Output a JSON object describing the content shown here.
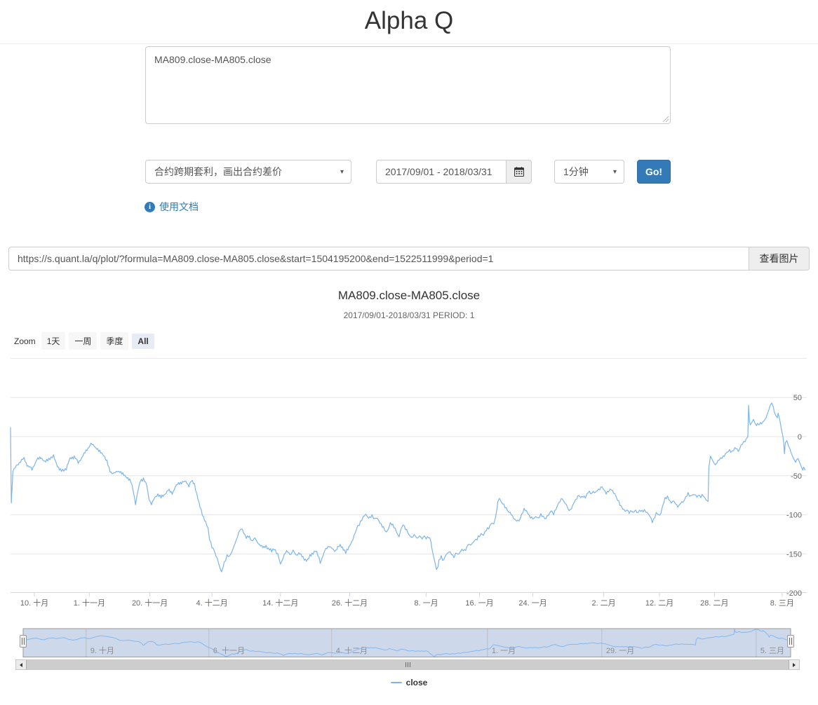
{
  "page": {
    "title": "Alpha Q"
  },
  "formula_input": {
    "value": "MA809.close-MA805.close"
  },
  "controls": {
    "strategy_select": {
      "value": "合约跨期套利，画出合约差价"
    },
    "date_range": {
      "value": "2017/09/01 - 2018/03/31"
    },
    "period_select": {
      "value": "1分钟"
    },
    "go_button": "Go!",
    "doc_link": {
      "icon_letter": "i",
      "label": "使用文档"
    }
  },
  "url_bar": {
    "value": "https://s.quant.la/q/plot/?formula=MA809.close-MA805.close&start=1504195200&end=1522511999&period=1",
    "view_image_button": "查看图片"
  },
  "chart": {
    "title": "MA809.close-MA805.close",
    "subtitle": "2017/09/01-2018/03/31 PERIOD: 1",
    "range_selector": {
      "zoom_label": "Zoom",
      "buttons": [
        "1天",
        "一周",
        "季度",
        "All"
      ],
      "selected": "All"
    },
    "legend": {
      "label": "close"
    },
    "colors": {
      "series": "#7cb5ec",
      "grid": "#e6e6e6",
      "axis_line": "#ccd6eb",
      "axis_label": "#666666",
      "nav_mask": "rgba(102,133,194,0.32)",
      "nav_grid": "#b0b0b0",
      "nav_label": "#8b8b8b"
    }
  },
  "chart_data": {
    "type": "line",
    "series_name": "close",
    "title": "MA809.close-MA805.close",
    "x_range": [
      "2017/09/01",
      "2018/03/31"
    ],
    "period": "1",
    "ylim": [
      -200,
      100
    ],
    "y_ticks": [
      50,
      0,
      -50,
      -100,
      -150,
      -200
    ],
    "y_gridlines": [
      100,
      50,
      0,
      -50,
      -100,
      -150
    ],
    "x_ticks": [
      {
        "f": 0.03,
        "label": "10. 十月"
      },
      {
        "f": 0.099,
        "label": "1. 十一月"
      },
      {
        "f": 0.175,
        "label": "20. 十一月"
      },
      {
        "f": 0.253,
        "label": "4. 十二月"
      },
      {
        "f": 0.339,
        "label": "14. 十二月"
      },
      {
        "f": 0.426,
        "label": "26. 十二月"
      },
      {
        "f": 0.522,
        "label": "8. 一月"
      },
      {
        "f": 0.589,
        "label": "16. 一月"
      },
      {
        "f": 0.656,
        "label": "24. 一月"
      },
      {
        "f": 0.745,
        "label": "2. 二月"
      },
      {
        "f": 0.815,
        "label": "12. 二月"
      },
      {
        "f": 0.884,
        "label": "28. 二月"
      },
      {
        "f": 0.969,
        "label": "8. 三月"
      }
    ],
    "navigator_ticks": [
      {
        "f": 0.082,
        "label": "9. 十月"
      },
      {
        "f": 0.242,
        "label": "6. 十一月"
      },
      {
        "f": 0.402,
        "label": "4. 十二月"
      },
      {
        "f": 0.605,
        "label": "1. 一月"
      },
      {
        "f": 0.754,
        "label": "29. 一月"
      },
      {
        "f": 0.955,
        "label": "5. 三月"
      }
    ],
    "points": [
      [
        0.0,
        12
      ],
      [
        0.001,
        -85
      ],
      [
        0.003,
        -45
      ],
      [
        0.006,
        -40
      ],
      [
        0.011,
        -33
      ],
      [
        0.017,
        -28
      ],
      [
        0.022,
        -38
      ],
      [
        0.027,
        -42
      ],
      [
        0.033,
        -30
      ],
      [
        0.038,
        -26
      ],
      [
        0.043,
        -33
      ],
      [
        0.048,
        -28
      ],
      [
        0.054,
        -25
      ],
      [
        0.059,
        -38
      ],
      [
        0.064,
        -44
      ],
      [
        0.07,
        -40
      ],
      [
        0.075,
        -28
      ],
      [
        0.08,
        -25
      ],
      [
        0.085,
        -34
      ],
      [
        0.091,
        -25
      ],
      [
        0.096,
        -16
      ],
      [
        0.101,
        -10
      ],
      [
        0.107,
        -14
      ],
      [
        0.112,
        -19
      ],
      [
        0.117,
        -24
      ],
      [
        0.121,
        -32
      ],
      [
        0.125,
        -44
      ],
      [
        0.13,
        -48
      ],
      [
        0.136,
        -44
      ],
      [
        0.141,
        -48
      ],
      [
        0.146,
        -52
      ],
      [
        0.151,
        -57
      ],
      [
        0.154,
        -68
      ],
      [
        0.157,
        -86
      ],
      [
        0.159,
        -74
      ],
      [
        0.163,
        -57
      ],
      [
        0.167,
        -53
      ],
      [
        0.171,
        -62
      ],
      [
        0.174,
        -80
      ],
      [
        0.177,
        -85
      ],
      [
        0.181,
        -79
      ],
      [
        0.185,
        -74
      ],
      [
        0.189,
        -78
      ],
      [
        0.194,
        -73
      ],
      [
        0.198,
        -69
      ],
      [
        0.203,
        -72
      ],
      [
        0.207,
        -64
      ],
      [
        0.211,
        -61
      ],
      [
        0.216,
        -57
      ],
      [
        0.22,
        -58
      ],
      [
        0.224,
        -63
      ],
      [
        0.227,
        -57
      ],
      [
        0.231,
        -62
      ],
      [
        0.234,
        -74
      ],
      [
        0.238,
        -90
      ],
      [
        0.241,
        -100
      ],
      [
        0.245,
        -108
      ],
      [
        0.248,
        -118
      ],
      [
        0.25,
        -132
      ],
      [
        0.253,
        -141
      ],
      [
        0.256,
        -146
      ],
      [
        0.258,
        -153
      ],
      [
        0.261,
        -159
      ],
      [
        0.263,
        -168
      ],
      [
        0.265,
        -173
      ],
      [
        0.267,
        -167
      ],
      [
        0.27,
        -158
      ],
      [
        0.272,
        -151
      ],
      [
        0.275,
        -153
      ],
      [
        0.278,
        -148
      ],
      [
        0.281,
        -138
      ],
      [
        0.285,
        -128
      ],
      [
        0.288,
        -120
      ],
      [
        0.291,
        -117
      ],
      [
        0.293,
        -124
      ],
      [
        0.296,
        -130
      ],
      [
        0.3,
        -127
      ],
      [
        0.303,
        -133
      ],
      [
        0.307,
        -130
      ],
      [
        0.31,
        -134
      ],
      [
        0.314,
        -139
      ],
      [
        0.317,
        -142
      ],
      [
        0.321,
        -140
      ],
      [
        0.324,
        -144
      ],
      [
        0.328,
        -147
      ],
      [
        0.331,
        -143
      ],
      [
        0.334,
        -149
      ],
      [
        0.337,
        -155
      ],
      [
        0.339,
        -163
      ],
      [
        0.342,
        -155
      ],
      [
        0.344,
        -150
      ],
      [
        0.348,
        -147
      ],
      [
        0.352,
        -150
      ],
      [
        0.355,
        -146
      ],
      [
        0.359,
        -151
      ],
      [
        0.362,
        -148
      ],
      [
        0.366,
        -153
      ],
      [
        0.369,
        -156
      ],
      [
        0.373,
        -159
      ],
      [
        0.376,
        -153
      ],
      [
        0.38,
        -149
      ],
      [
        0.383,
        -147
      ],
      [
        0.386,
        -152
      ],
      [
        0.389,
        -160
      ],
      [
        0.391,
        -156
      ],
      [
        0.394,
        -148
      ],
      [
        0.396,
        -143
      ],
      [
        0.4,
        -140
      ],
      [
        0.404,
        -143
      ],
      [
        0.407,
        -146
      ],
      [
        0.411,
        -141
      ],
      [
        0.414,
        -139
      ],
      [
        0.418,
        -143
      ],
      [
        0.421,
        -148
      ],
      [
        0.425,
        -143
      ],
      [
        0.427,
        -138
      ],
      [
        0.43,
        -130
      ],
      [
        0.433,
        -123
      ],
      [
        0.435,
        -117
      ],
      [
        0.438,
        -112
      ],
      [
        0.441,
        -107
      ],
      [
        0.443,
        -102
      ],
      [
        0.446,
        -99
      ],
      [
        0.448,
        -102
      ],
      [
        0.451,
        -105
      ],
      [
        0.454,
        -102
      ],
      [
        0.456,
        -105
      ],
      [
        0.459,
        -103
      ],
      [
        0.462,
        -107
      ],
      [
        0.464,
        -111
      ],
      [
        0.467,
        -114
      ],
      [
        0.47,
        -119
      ],
      [
        0.472,
        -122
      ],
      [
        0.475,
        -117
      ],
      [
        0.477,
        -110
      ],
      [
        0.48,
        -114
      ],
      [
        0.483,
        -119
      ],
      [
        0.485,
        -123
      ],
      [
        0.488,
        -127
      ],
      [
        0.491,
        -117
      ],
      [
        0.493,
        -113
      ],
      [
        0.496,
        -117
      ],
      [
        0.499,
        -122
      ],
      [
        0.501,
        -126
      ],
      [
        0.504,
        -129
      ],
      [
        0.507,
        -125
      ],
      [
        0.509,
        -128
      ],
      [
        0.512,
        -131
      ],
      [
        0.514,
        -127
      ],
      [
        0.517,
        -130
      ],
      [
        0.52,
        -128
      ],
      [
        0.522,
        -131
      ],
      [
        0.525,
        -127
      ],
      [
        0.528,
        -133
      ],
      [
        0.529,
        -142
      ],
      [
        0.531,
        -152
      ],
      [
        0.533,
        -161
      ],
      [
        0.535,
        -170
      ],
      [
        0.537,
        -166
      ],
      [
        0.538,
        -158
      ],
      [
        0.541,
        -154
      ],
      [
        0.544,
        -158
      ],
      [
        0.546,
        -153
      ],
      [
        0.549,
        -150
      ],
      [
        0.552,
        -148
      ],
      [
        0.554,
        -151
      ],
      [
        0.557,
        -153
      ],
      [
        0.559,
        -149
      ],
      [
        0.562,
        -151
      ],
      [
        0.565,
        -147
      ],
      [
        0.567,
        -144
      ],
      [
        0.57,
        -146
      ],
      [
        0.573,
        -141
      ],
      [
        0.575,
        -138
      ],
      [
        0.578,
        -140
      ],
      [
        0.581,
        -136
      ],
      [
        0.583,
        -133
      ],
      [
        0.586,
        -130
      ],
      [
        0.589,
        -127
      ],
      [
        0.591,
        -124
      ],
      [
        0.594,
        -126
      ],
      [
        0.596,
        -121
      ],
      [
        0.599,
        -118
      ],
      [
        0.602,
        -114
      ],
      [
        0.604,
        -111
      ],
      [
        0.607,
        -113
      ],
      [
        0.609,
        -104
      ],
      [
        0.611,
        -92
      ],
      [
        0.612,
        -83
      ],
      [
        0.614,
        -79
      ],
      [
        0.616,
        -83
      ],
      [
        0.618,
        -86
      ],
      [
        0.621,
        -89
      ],
      [
        0.624,
        -93
      ],
      [
        0.626,
        -97
      ],
      [
        0.629,
        -100
      ],
      [
        0.632,
        -103
      ],
      [
        0.634,
        -106
      ],
      [
        0.637,
        -109
      ],
      [
        0.64,
        -106
      ],
      [
        0.642,
        -99
      ],
      [
        0.645,
        -93
      ],
      [
        0.648,
        -96
      ],
      [
        0.65,
        -99
      ],
      [
        0.653,
        -103
      ],
      [
        0.656,
        -106
      ],
      [
        0.658,
        -104
      ],
      [
        0.661,
        -101
      ],
      [
        0.663,
        -104
      ],
      [
        0.666,
        -101
      ],
      [
        0.669,
        -103
      ],
      [
        0.671,
        -105
      ],
      [
        0.674,
        -102
      ],
      [
        0.677,
        -99
      ],
      [
        0.679,
        -95
      ],
      [
        0.682,
        -99
      ],
      [
        0.685,
        -94
      ],
      [
        0.687,
        -88
      ],
      [
        0.69,
        -81
      ],
      [
        0.693,
        -78
      ],
      [
        0.695,
        -83
      ],
      [
        0.698,
        -88
      ],
      [
        0.7,
        -92
      ],
      [
        0.703,
        -94
      ],
      [
        0.706,
        -89
      ],
      [
        0.708,
        -84
      ],
      [
        0.711,
        -79
      ],
      [
        0.714,
        -76
      ],
      [
        0.716,
        -78
      ],
      [
        0.719,
        -75
      ],
      [
        0.722,
        -77
      ],
      [
        0.724,
        -73
      ],
      [
        0.727,
        -71
      ],
      [
        0.73,
        -73
      ],
      [
        0.732,
        -70
      ],
      [
        0.735,
        -72
      ],
      [
        0.737,
        -69
      ],
      [
        0.74,
        -67
      ],
      [
        0.743,
        -65
      ],
      [
        0.745,
        -68
      ],
      [
        0.748,
        -71
      ],
      [
        0.751,
        -69
      ],
      [
        0.753,
        -67
      ],
      [
        0.756,
        -70
      ],
      [
        0.759,
        -73
      ],
      [
        0.761,
        -78
      ],
      [
        0.764,
        -84
      ],
      [
        0.767,
        -89
      ],
      [
        0.769,
        -93
      ],
      [
        0.772,
        -96
      ],
      [
        0.774,
        -94
      ],
      [
        0.777,
        -96
      ],
      [
        0.78,
        -94
      ],
      [
        0.782,
        -97
      ],
      [
        0.785,
        -95
      ],
      [
        0.788,
        -97
      ],
      [
        0.79,
        -94
      ],
      [
        0.793,
        -96
      ],
      [
        0.796,
        -94
      ],
      [
        0.798,
        -97
      ],
      [
        0.801,
        -99
      ],
      [
        0.803,
        -102
      ],
      [
        0.806,
        -108
      ],
      [
        0.809,
        -103
      ],
      [
        0.811,
        -97
      ],
      [
        0.814,
        -101
      ],
      [
        0.817,
        -97
      ],
      [
        0.819,
        -88
      ],
      [
        0.822,
        -80
      ],
      [
        0.825,
        -77
      ],
      [
        0.827,
        -81
      ],
      [
        0.83,
        -85
      ],
      [
        0.833,
        -82
      ],
      [
        0.835,
        -86
      ],
      [
        0.838,
        -89
      ],
      [
        0.84,
        -87
      ],
      [
        0.843,
        -84
      ],
      [
        0.846,
        -81
      ],
      [
        0.848,
        -77
      ],
      [
        0.851,
        -74
      ],
      [
        0.854,
        -77
      ],
      [
        0.856,
        -75
      ],
      [
        0.859,
        -74
      ],
      [
        0.862,
        -77
      ],
      [
        0.864,
        -75
      ],
      [
        0.867,
        -77
      ],
      [
        0.87,
        -76
      ],
      [
        0.872,
        -78
      ],
      [
        0.875,
        -81
      ],
      [
        0.876,
        -83
      ],
      [
        0.877,
        -40
      ],
      [
        0.879,
        -25
      ],
      [
        0.881,
        -29
      ],
      [
        0.883,
        -33
      ],
      [
        0.885,
        -36
      ],
      [
        0.887,
        -34
      ],
      [
        0.89,
        -30
      ],
      [
        0.892,
        -27
      ],
      [
        0.895,
        -25
      ],
      [
        0.898,
        -23
      ],
      [
        0.9,
        -20
      ],
      [
        0.903,
        -17
      ],
      [
        0.906,
        -20
      ],
      [
        0.908,
        -18
      ],
      [
        0.911,
        -14
      ],
      [
        0.914,
        -17
      ],
      [
        0.916,
        -15
      ],
      [
        0.919,
        -10
      ],
      [
        0.921,
        -6
      ],
      [
        0.924,
        -3
      ],
      [
        0.926,
        0
      ],
      [
        0.927,
        40
      ],
      [
        0.928,
        20
      ],
      [
        0.929,
        15
      ],
      [
        0.931,
        18
      ],
      [
        0.933,
        22
      ],
      [
        0.935,
        17
      ],
      [
        0.937,
        14
      ],
      [
        0.938,
        17
      ],
      [
        0.94,
        15
      ],
      [
        0.942,
        18
      ],
      [
        0.943,
        16
      ],
      [
        0.945,
        19
      ],
      [
        0.947,
        21
      ],
      [
        0.949,
        24
      ],
      [
        0.95,
        28
      ],
      [
        0.952,
        33
      ],
      [
        0.954,
        40
      ],
      [
        0.956,
        43
      ],
      [
        0.958,
        38
      ],
      [
        0.959,
        32
      ],
      [
        0.961,
        27
      ],
      [
        0.963,
        24
      ],
      [
        0.964,
        30
      ],
      [
        0.966,
        22
      ],
      [
        0.968,
        10
      ],
      [
        0.97,
        0
      ],
      [
        0.971,
        -8
      ],
      [
        0.972,
        -22
      ],
      [
        0.973,
        -8
      ],
      [
        0.975,
        -5
      ],
      [
        0.977,
        -12
      ],
      [
        0.979,
        -16
      ],
      [
        0.98,
        -20
      ],
      [
        0.982,
        -25
      ],
      [
        0.984,
        -29
      ],
      [
        0.986,
        -33
      ],
      [
        0.987,
        -30
      ],
      [
        0.989,
        -28
      ],
      [
        0.991,
        -33
      ],
      [
        0.993,
        -38
      ],
      [
        0.995,
        -43
      ],
      [
        0.996,
        -39
      ],
      [
        0.998,
        -43
      ]
    ]
  }
}
